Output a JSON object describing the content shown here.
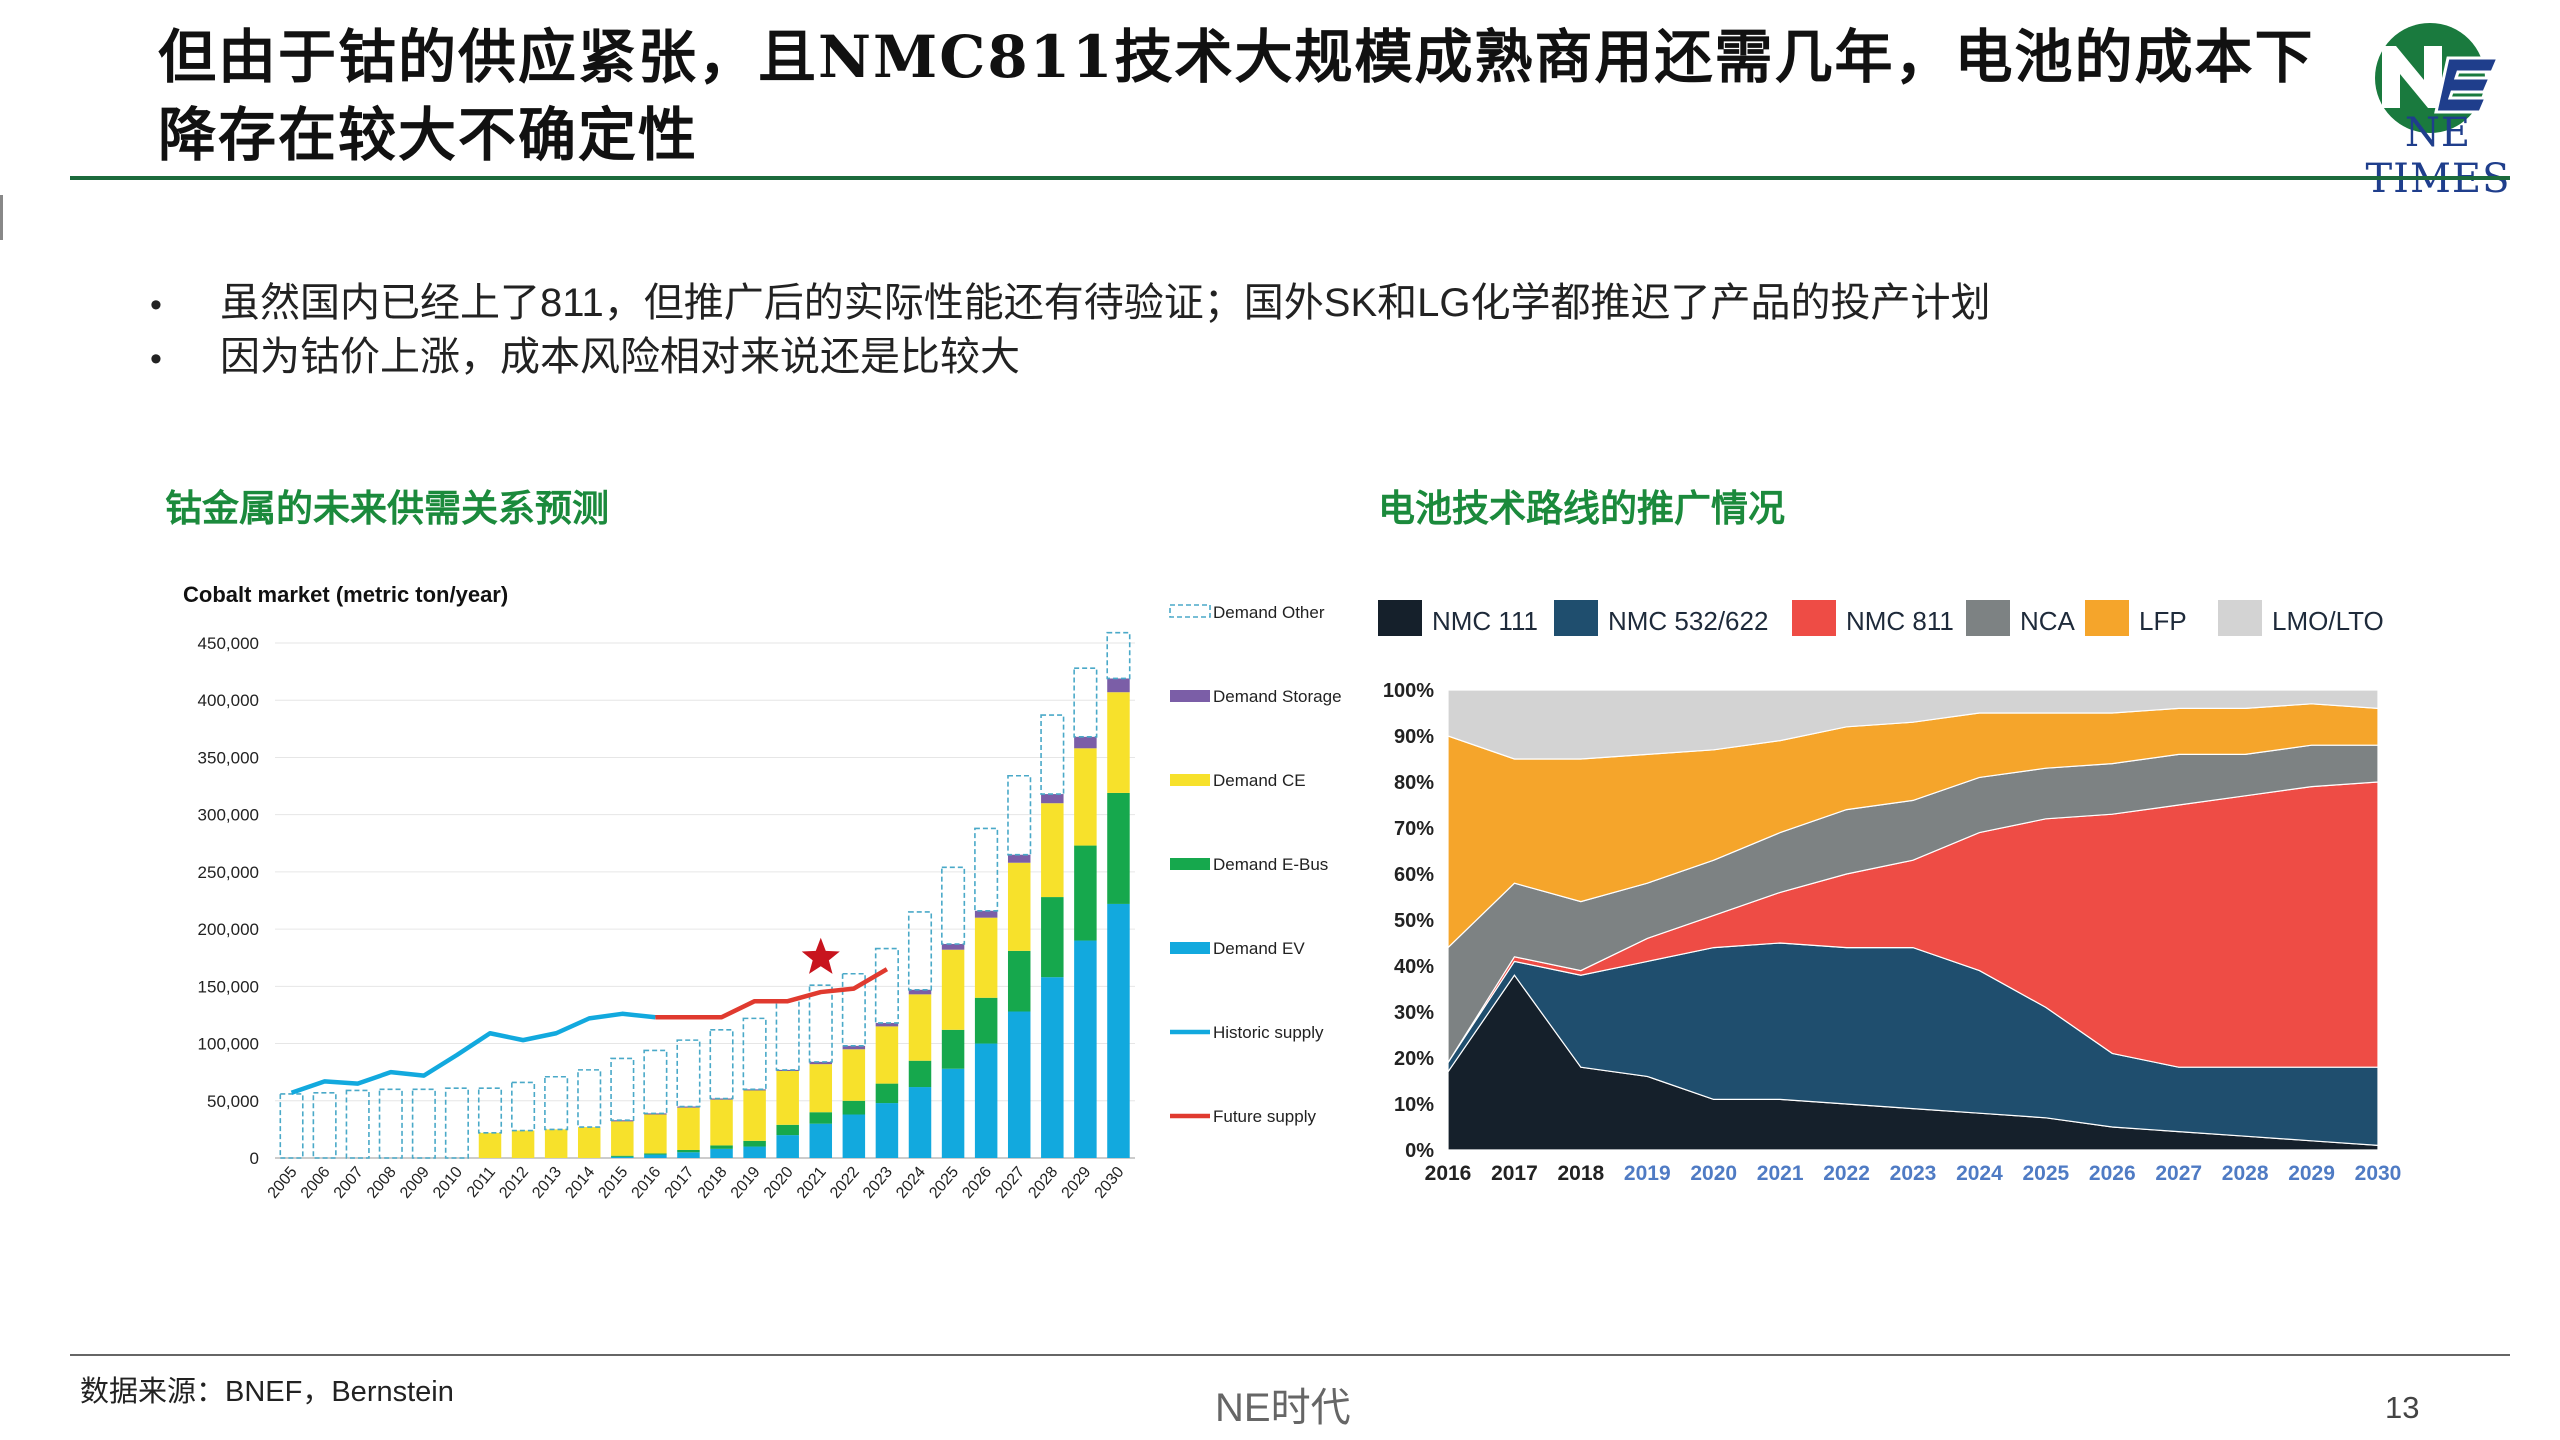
{
  "title": "但由于钴的供应紧张，且NMC811技术大规模成熟商用还需几年，电池的成本下降存在较大不确定性",
  "logo": {
    "name": "NE TIMES"
  },
  "bullets": [
    "虽然国内已经上了811，但推广后的实际性能还有待验证；国外SK和LG化学都推迟了产品的投产计划",
    "因为钴价上涨，成本风险相对来说还是比较大"
  ],
  "left_title": "钴金属的未来供需关系预测",
  "right_title": "电池技术路线的推广情况",
  "footer": {
    "source": "数据来源：BNEF，Bernstein",
    "brand": "NE时代",
    "page": "13"
  },
  "colors": {
    "green": "#1b8a3c",
    "demand_other": "#4aa9c8",
    "storage": "#7b5ea7",
    "ce": "#f7e12b",
    "ebus": "#16a84d",
    "ev": "#12a9de",
    "historic": "#12a9de",
    "future": "#e03a2f",
    "star": "#c8141e",
    "nmc111": "#15202b",
    "nmc532": "#1f4e6e",
    "nmc811": "#ee4c45",
    "nca": "#7d8283",
    "lfp": "#f5a52b",
    "lmo": "#d3d3d3"
  },
  "chart_data": [
    {
      "type": "bar",
      "title": "Cobalt market (metric ton/year)",
      "categories": [
        "2005",
        "2006",
        "2007",
        "2008",
        "2009",
        "2010",
        "2011",
        "2012",
        "2013",
        "2014",
        "2015",
        "2016",
        "2017",
        "2018",
        "2019",
        "2020",
        "2021",
        "2022",
        "2023",
        "2024",
        "2025",
        "2026",
        "2027",
        "2028",
        "2029",
        "2030"
      ],
      "ylim": [
        0,
        450000
      ],
      "yticks": [
        0,
        50000,
        100000,
        150000,
        200000,
        250000,
        300000,
        350000,
        400000,
        450000
      ],
      "ytick_labels": [
        "0",
        "50,000",
        "100,000",
        "150,000",
        "200,000",
        "250,000",
        "300,000",
        "350,000",
        "400,000",
        "450,000"
      ],
      "series": [
        {
          "name": "Demand EV",
          "values": [
            0,
            0,
            0,
            0,
            0,
            0,
            0,
            0,
            0,
            0,
            1000,
            3000,
            5000,
            8000,
            10000,
            20000,
            30000,
            38000,
            48000,
            62000,
            78000,
            100000,
            128000,
            158000,
            190000,
            222000
          ]
        },
        {
          "name": "Demand E-Bus",
          "values": [
            0,
            0,
            0,
            0,
            0,
            0,
            0,
            0,
            0,
            0,
            1000,
            1000,
            2000,
            3000,
            5000,
            9000,
            10000,
            12000,
            17000,
            23000,
            34000,
            40000,
            53000,
            70000,
            83000,
            97000
          ]
        },
        {
          "name": "Demand CE",
          "values": [
            0,
            0,
            0,
            0,
            0,
            0,
            22000,
            24000,
            25000,
            27000,
            30000,
            34000,
            37000,
            40000,
            44000,
            47000,
            42000,
            45000,
            50000,
            58000,
            70000,
            70000,
            77000,
            82000,
            85000,
            88000
          ]
        },
        {
          "name": "Demand Storage",
          "values": [
            0,
            0,
            0,
            0,
            0,
            0,
            0,
            0,
            0,
            0,
            1000,
            1000,
            1000,
            1000,
            1000,
            1000,
            2000,
            3000,
            3000,
            4000,
            5000,
            6000,
            7000,
            8000,
            10000,
            12000
          ]
        },
        {
          "name": "Demand Other",
          "values": [
            56000,
            57000,
            59000,
            60000,
            60000,
            61000,
            39000,
            42000,
            46000,
            50000,
            54000,
            55000,
            58000,
            60000,
            62000,
            61000,
            67000,
            63000,
            65000,
            68000,
            67000,
            72000,
            69000,
            69000,
            60000,
            40000
          ]
        }
      ],
      "historic_supply": [
        57000,
        67000,
        65000,
        75000,
        72000,
        90000,
        109000,
        103000,
        109000,
        122000,
        126000,
        123000
      ],
      "future_supply": {
        "start_year": "2016",
        "values": [
          123000,
          123000,
          123000,
          137000,
          137000,
          145000,
          148000,
          165000
        ]
      },
      "star_annotation": {
        "year": "2021",
        "value": 175000
      },
      "legend": [
        "Demand Other",
        "Demand Storage",
        "Demand CE",
        "Demand E-Bus",
        "Demand EV",
        "Historic supply",
        "Future supply"
      ]
    },
    {
      "type": "area",
      "stacked": true,
      "normalized": true,
      "x": [
        "2016",
        "2017",
        "2018",
        "2019",
        "2020",
        "2021",
        "2022",
        "2023",
        "2024",
        "2025",
        "2026",
        "2027",
        "2028",
        "2029",
        "2030"
      ],
      "historic_years": [
        "2016",
        "2017",
        "2018"
      ],
      "ylim": [
        0,
        100
      ],
      "yticks": [
        0,
        10,
        20,
        30,
        40,
        50,
        60,
        70,
        80,
        90,
        100
      ],
      "ytick_labels": [
        "0%",
        "10%",
        "20%",
        "30%",
        "40%",
        "50%",
        "60%",
        "70%",
        "80%",
        "90%",
        "100%"
      ],
      "series": [
        {
          "name": "NMC 111",
          "values": [
            17,
            38,
            18,
            16,
            11,
            11,
            10,
            9,
            8,
            7,
            5,
            4,
            3,
            2,
            1
          ]
        },
        {
          "name": "NMC 532/622",
          "values": [
            2,
            3,
            20,
            25,
            33,
            34,
            34,
            35,
            31,
            24,
            16,
            14,
            15,
            16,
            17
          ]
        },
        {
          "name": "NMC 811",
          "values": [
            0,
            1,
            1,
            5,
            7,
            11,
            16,
            19,
            30,
            41,
            52,
            57,
            59,
            61,
            62
          ]
        },
        {
          "name": "NCA",
          "values": [
            25,
            16,
            15,
            12,
            12,
            13,
            14,
            13,
            12,
            11,
            11,
            11,
            9,
            9,
            8
          ]
        },
        {
          "name": "LFP",
          "values": [
            46,
            27,
            31,
            28,
            24,
            20,
            18,
            17,
            14,
            12,
            11,
            10,
            10,
            9,
            8
          ]
        },
        {
          "name": "LMO/LTO",
          "values": [
            10,
            15,
            15,
            14,
            13,
            11,
            8,
            7,
            5,
            5,
            5,
            4,
            4,
            3,
            4
          ]
        }
      ]
    }
  ]
}
